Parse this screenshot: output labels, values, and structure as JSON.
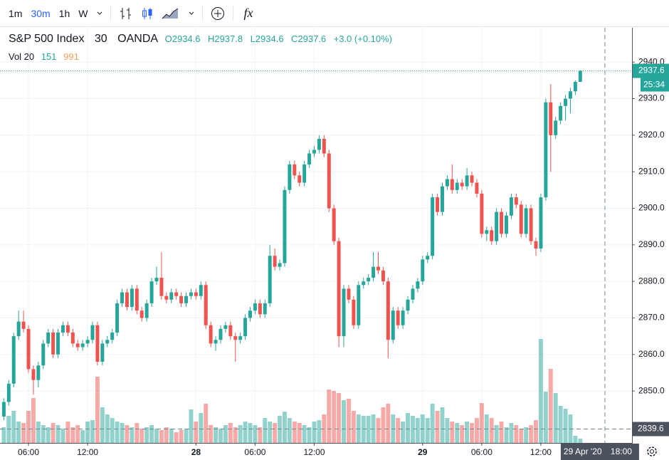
{
  "toolbar": {
    "intervals": [
      "1m",
      "30m",
      "1h",
      "W"
    ],
    "active": 1,
    "indicators": "fx"
  },
  "chart_data": {
    "type": "candlestick",
    "title": "S&P 500 Index",
    "interval": "30",
    "source": "OANDA",
    "header": {
      "open": "O2934.6",
      "high": "H2937.8",
      "low": "L2934.6",
      "close": "C2937.6",
      "change": "+3.0 (+0.10%)"
    },
    "volume_legend": {
      "label": "Vol 20",
      "ma": 151,
      "value": 991
    },
    "up_color": "#26a69a",
    "down_color": "#ef5350",
    "xlim": [
      -0.78,
      127.5
    ],
    "xticks": [
      {
        "value": 5,
        "label": "06:00"
      },
      {
        "value": 17,
        "label": "12:00"
      },
      {
        "value": 39,
        "label": "28"
      },
      {
        "value": 51,
        "label": "06:00"
      },
      {
        "value": 63,
        "label": "12:00"
      },
      {
        "value": 85,
        "label": "29"
      },
      {
        "value": 97,
        "label": "06:00"
      },
      {
        "value": 109,
        "label": "12:00"
      }
    ],
    "ylim": [
      2835.8,
      2949.2
    ],
    "yticks": [
      {
        "value": 2850,
        "label": "2850.0"
      },
      {
        "value": 2860,
        "label": "2860.0"
      },
      {
        "value": 2870,
        "label": "2870.0"
      },
      {
        "value": 2880,
        "label": "2880.0"
      },
      {
        "value": 2890,
        "label": "2890.0"
      },
      {
        "value": 2900,
        "label": "2900.0"
      },
      {
        "value": 2910,
        "label": "2910.0"
      },
      {
        "value": 2920,
        "label": "2920.0"
      },
      {
        "value": 2930,
        "label": "2930.0"
      },
      {
        "value": 2940,
        "label": "2940.0"
      }
    ],
    "grid": true,
    "volume_lim": [
      0,
      400
    ],
    "last_price": 2937.6,
    "countdown": "25:34",
    "crosshair": {
      "x": 122,
      "y": 2839.6,
      "date": "29 Apr '20",
      "time": "18:00"
    },
    "open": [
      2843,
      2847,
      2852,
      2865,
      2869,
      2867,
      2856,
      2853,
      2857,
      2863,
      2866,
      2860,
      2866,
      2868,
      2866,
      2863,
      2862,
      2863,
      2864,
      2868,
      2858,
      2863,
      2864,
      2866,
      2874,
      2877,
      2873,
      2878,
      2872,
      2870,
      2874,
      2880,
      2881,
      2876,
      2875,
      2877,
      2876,
      2874,
      2876,
      2877,
      2876,
      2879,
      2868,
      2863,
      2864,
      2867,
      2868,
      2865,
      2864,
      2865,
      2870,
      2872,
      2874,
      2871,
      2874,
      2887,
      2884,
      2885,
      2905,
      2912,
      2909,
      2907,
      2912,
      2915,
      2916,
      2919,
      2915,
      2900,
      2891,
      2865,
      2878,
      2875,
      2868,
      2879,
      2880,
      2881,
      2884,
      2883,
      2880,
      2864,
      2872,
      2868,
      2872,
      2875,
      2878,
      2880,
      2886,
      2887,
      2903,
      2899,
      2906,
      2908,
      2905,
      2907,
      2906,
      2909,
      2907,
      2904,
      2893,
      2894,
      2891,
      2899,
      2893,
      2898,
      2903,
      2901,
      2893,
      2900,
      2891,
      2889,
      2903,
      2929,
      2920,
      2924,
      2928,
      2930,
      2932,
      2934.6
    ],
    "high": [
      2848,
      2853,
      2866,
      2872,
      2872,
      2868,
      2857,
      2858,
      2864,
      2867,
      2867,
      2867,
      2869,
      2869,
      2867,
      2864,
      2864,
      2865,
      2869,
      2869,
      2864,
      2865,
      2867,
      2875,
      2878,
      2878,
      2879,
      2879,
      2873,
      2875,
      2881,
      2884,
      2888,
      2877,
      2878,
      2878,
      2877,
      2877,
      2878,
      2878,
      2880,
      2880,
      2869,
      2865,
      2868,
      2869,
      2869,
      2866,
      2866,
      2871,
      2873,
      2875,
      2875,
      2875,
      2890,
      2889,
      2886,
      2906,
      2913,
      2913,
      2910,
      2913,
      2916,
      2917,
      2920,
      2920,
      2916,
      2901,
      2892,
      2879,
      2879,
      2876,
      2880,
      2881,
      2882,
      2888,
      2888,
      2884,
      2881,
      2873,
      2873,
      2873,
      2876,
      2879,
      2881,
      2887,
      2888,
      2904,
      2904,
      2907,
      2909,
      2912,
      2908,
      2908,
      2911,
      2910,
      2908,
      2905,
      2895,
      2895,
      2900,
      2900,
      2899,
      2904,
      2904,
      2902,
      2901,
      2901,
      2892,
      2904,
      2930,
      2934,
      2925,
      2929,
      2931,
      2933,
      2935,
      2937.8
    ],
    "low": [
      2842,
      2846,
      2851,
      2864,
      2866,
      2855,
      2849,
      2851,
      2856,
      2862,
      2859,
      2859,
      2865,
      2865,
      2862,
      2861,
      2861,
      2862,
      2863,
      2857,
      2857,
      2862,
      2863,
      2865,
      2873,
      2872,
      2872,
      2871,
      2869,
      2869,
      2873,
      2879,
      2875,
      2874,
      2874,
      2875,
      2873,
      2873,
      2875,
      2875,
      2875,
      2867,
      2862,
      2861,
      2863,
      2866,
      2864,
      2858,
      2863,
      2864,
      2869,
      2871,
      2870,
      2870,
      2873,
      2883,
      2883,
      2884,
      2904,
      2908,
      2906,
      2906,
      2911,
      2914,
      2915,
      2914,
      2899,
      2890,
      2862,
      2862,
      2874,
      2867,
      2867,
      2878,
      2879,
      2880,
      2882,
      2879,
      2859,
      2863,
      2867,
      2867,
      2871,
      2874,
      2877,
      2879,
      2885,
      2886,
      2898,
      2898,
      2905,
      2904,
      2904,
      2905,
      2905,
      2906,
      2903,
      2892,
      2891,
      2890,
      2890,
      2892,
      2892,
      2897,
      2900,
      2892,
      2892,
      2890,
      2887,
      2888,
      2902,
      2910,
      2919,
      2923,
      2924,
      2926,
      2931,
      2934.6
    ],
    "close": [
      2847,
      2852,
      2865,
      2869,
      2867,
      2856,
      2853,
      2857,
      2863,
      2866,
      2860,
      2866,
      2868,
      2866,
      2863,
      2862,
      2863,
      2864,
      2868,
      2858,
      2863,
      2864,
      2866,
      2874,
      2877,
      2873,
      2878,
      2872,
      2870,
      2874,
      2880,
      2881,
      2876,
      2875,
      2877,
      2876,
      2874,
      2876,
      2877,
      2876,
      2879,
      2868,
      2863,
      2864,
      2867,
      2868,
      2865,
      2864,
      2865,
      2870,
      2872,
      2874,
      2871,
      2874,
      2887,
      2884,
      2885,
      2905,
      2912,
      2909,
      2907,
      2912,
      2915,
      2916,
      2919,
      2915,
      2900,
      2891,
      2865,
      2878,
      2875,
      2868,
      2879,
      2880,
      2881,
      2884,
      2883,
      2880,
      2864,
      2872,
      2868,
      2872,
      2875,
      2878,
      2880,
      2886,
      2887,
      2903,
      2899,
      2906,
      2908,
      2905,
      2907,
      2906,
      2909,
      2907,
      2904,
      2893,
      2894,
      2891,
      2899,
      2893,
      2898,
      2903,
      2901,
      2893,
      2900,
      2891,
      2889,
      2903,
      2929,
      2920,
      2924,
      2928,
      2930,
      2932,
      2934.6,
      2937.6
    ],
    "volume": [
      22,
      38,
      45,
      30,
      28,
      45,
      63,
      30,
      25,
      22,
      28,
      25,
      20,
      30,
      22,
      25,
      18,
      30,
      32,
      93,
      50,
      40,
      35,
      30,
      28,
      25,
      22,
      28,
      20,
      22,
      25,
      20,
      18,
      22,
      20,
      15,
      18,
      20,
      47,
      30,
      42,
      55,
      25,
      22,
      20,
      25,
      28,
      22,
      25,
      30,
      28,
      25,
      22,
      35,
      30,
      28,
      38,
      44,
      35,
      30,
      28,
      25,
      22,
      30,
      32,
      40,
      75,
      73,
      70,
      60,
      62,
      45,
      40,
      38,
      38,
      40,
      35,
      50,
      55,
      40,
      35,
      30,
      42,
      38,
      35,
      40,
      35,
      55,
      45,
      50,
      35,
      30,
      28,
      25,
      30,
      28,
      35,
      56,
      40,
      35,
      25,
      30,
      22,
      28,
      25,
      20,
      22,
      25,
      32,
      146,
      72,
      104,
      70,
      52,
      48,
      40,
      10,
      6
    ]
  }
}
